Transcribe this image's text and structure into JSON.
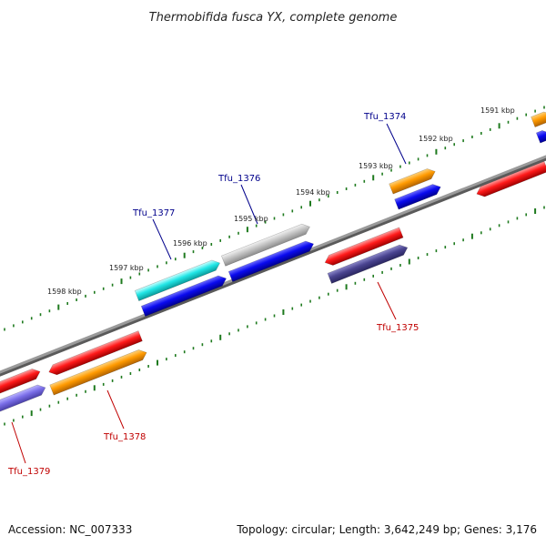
{
  "title": "Thermobifida fusca YX, complete genome",
  "footer": {
    "accession": "Accession: NC_007333",
    "summary": "Topology: circular; Length: 3,642,249 bp; Genes: 3,176"
  },
  "colors": {
    "backbone": "#888888",
    "ticks": "#1e7a1e",
    "forward_label": "#00008b",
    "reverse_label": "#c00000"
  },
  "kbp_labels": [
    "1591 kbp",
    "1592 kbp",
    "1593 kbp",
    "1594 kbp",
    "1595 kbp",
    "1596 kbp",
    "1597 kbp",
    "1598 kbp"
  ],
  "gene_labels": [
    "Tfu_1374",
    "Tfu_1375",
    "Tfu_1376",
    "Tfu_1377",
    "Tfu_1378",
    "Tfu_1379"
  ]
}
